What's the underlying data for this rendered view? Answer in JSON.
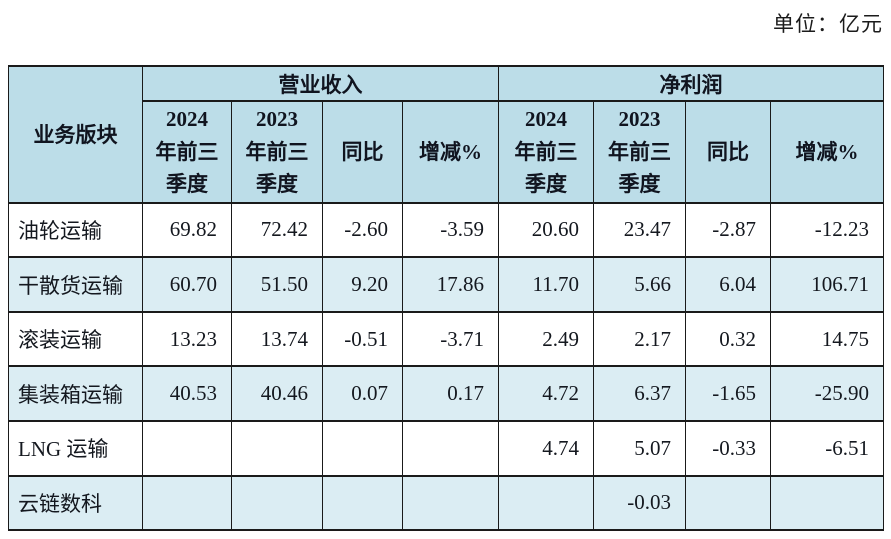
{
  "unit_label": "单位：亿元",
  "table": {
    "corner_header": "业务版块",
    "group_headers": [
      "营业收入",
      "净利润"
    ],
    "sub_headers": [
      "2024\n年前三\n季度",
      "2023\n年前三\n季度",
      "同比",
      "增减%"
    ],
    "rows": [
      {
        "label": "油轮运输",
        "values": [
          "69.82",
          "72.42",
          "-2.60",
          "-3.59",
          "20.60",
          "23.47",
          "-2.87",
          "-12.23"
        ]
      },
      {
        "label": "干散货运输",
        "values": [
          "60.70",
          "51.50",
          "9.20",
          "17.86",
          "11.70",
          "5.66",
          "6.04",
          "106.71"
        ]
      },
      {
        "label": "滚装运输",
        "values": [
          "13.23",
          "13.74",
          "-0.51",
          "-3.71",
          "2.49",
          "2.17",
          "0.32",
          "14.75"
        ]
      },
      {
        "label": "集装箱运输",
        "values": [
          "40.53",
          "40.46",
          "0.07",
          "0.17",
          "4.72",
          "6.37",
          "-1.65",
          "-25.90"
        ]
      },
      {
        "label": "LNG 运输",
        "values": [
          "",
          "",
          "",
          "",
          "4.74",
          "5.07",
          "-0.33",
          "-6.51"
        ]
      },
      {
        "label": "云链数科",
        "values": [
          "",
          "",
          "",
          "",
          "",
          "-0.03",
          "",
          ""
        ]
      }
    ],
    "colors": {
      "header_bg": "#BCDDE8",
      "stripe_bg": "#DBEDF3",
      "border": "#1A1A1A",
      "text": "#14181F"
    }
  },
  "chart_data": {
    "type": "table",
    "title": "",
    "unit": "亿元",
    "row_header": "业务版块",
    "column_groups": [
      "营业收入",
      "净利润"
    ],
    "columns": [
      "营业收入 2024年前三季度",
      "营业收入 2023年前三季度",
      "营业收入 同比",
      "营业收入 增减%",
      "净利润 2024年前三季度",
      "净利润 2023年前三季度",
      "净利润 同比",
      "净利润 增减%"
    ],
    "rows": [
      {
        "segment": "油轮运输",
        "values": [
          69.82,
          72.42,
          -2.6,
          -3.59,
          20.6,
          23.47,
          -2.87,
          -12.23
        ]
      },
      {
        "segment": "干散货运输",
        "values": [
          60.7,
          51.5,
          9.2,
          17.86,
          11.7,
          5.66,
          6.04,
          106.71
        ]
      },
      {
        "segment": "滚装运输",
        "values": [
          13.23,
          13.74,
          -0.51,
          -3.71,
          2.49,
          2.17,
          0.32,
          14.75
        ]
      },
      {
        "segment": "集装箱运输",
        "values": [
          40.53,
          40.46,
          0.07,
          0.17,
          4.72,
          6.37,
          -1.65,
          -25.9
        ]
      },
      {
        "segment": "LNG 运输",
        "values": [
          null,
          null,
          null,
          null,
          4.74,
          5.07,
          -0.33,
          -6.51
        ]
      },
      {
        "segment": "云链数科",
        "values": [
          null,
          null,
          null,
          null,
          null,
          -0.03,
          null,
          null
        ]
      }
    ]
  }
}
